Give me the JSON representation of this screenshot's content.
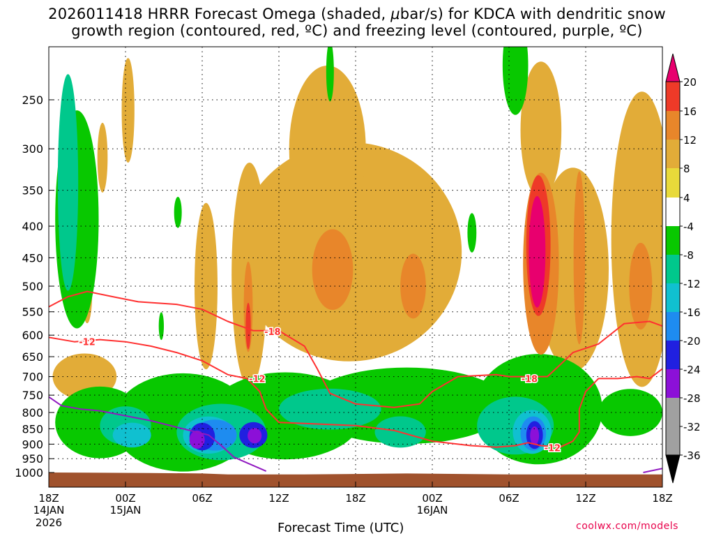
{
  "title": {
    "line1_a": "2026011418 HRRR Forecast Omega (shaded, ",
    "mu": "μ",
    "line1_b": "bar/s) for KDCA with dendritic snow",
    "line2": "growth region (contoured, red, ºC) and freezing level (contoured, purple, ºC)"
  },
  "footer": {
    "xlabel": "Forecast Time (UTC)",
    "credit": "coolwx.com/models"
  },
  "chart_data": {
    "type": "heatmap",
    "title": "2026011418 HRRR Forecast Omega (shaded, μbar/s) for KDCA with dendritic snow growth region (contoured, red, ºC) and freezing level (contoured, purple, ºC)",
    "xlabel": "Forecast Time (UTC)",
    "ylabel": "",
    "x_range_hours": [
      0,
      48
    ],
    "y_range_hPa": [
      1000,
      200
    ],
    "y_ticks": [
      250,
      300,
      350,
      400,
      450,
      500,
      550,
      600,
      650,
      700,
      750,
      800,
      850,
      900,
      950,
      1000
    ],
    "x_ticks": [
      {
        "h": 0,
        "label": "18Z",
        "sub1": "14JAN",
        "sub2": "2026"
      },
      {
        "h": 6,
        "label": "00Z",
        "sub1": "15JAN",
        "sub2": ""
      },
      {
        "h": 12,
        "label": "06Z",
        "sub1": "",
        "sub2": ""
      },
      {
        "h": 18,
        "label": "12Z",
        "sub1": "",
        "sub2": ""
      },
      {
        "h": 24,
        "label": "18Z",
        "sub1": "",
        "sub2": ""
      },
      {
        "h": 30,
        "label": "00Z",
        "sub1": "16JAN",
        "sub2": ""
      },
      {
        "h": 36,
        "label": "06Z",
        "sub1": "",
        "sub2": ""
      },
      {
        "h": 42,
        "label": "12Z",
        "sub1": "",
        "sub2": ""
      },
      {
        "h": 48,
        "label": "18Z",
        "sub1": "",
        "sub2": ""
      }
    ],
    "colorbar": {
      "levels": [
        20,
        16,
        12,
        8,
        4,
        -4,
        -8,
        -12,
        -16,
        -20,
        -24,
        -28,
        -32,
        -36
      ],
      "colors": [
        "#e8006e",
        "#ee3a28",
        "#e8862a",
        "#e2ac38",
        "#e8da3a",
        "#ffffff",
        "#08c800",
        "#00c88c",
        "#10c0d0",
        "#1e8cf0",
        "#2020e0",
        "#8c10d8",
        "#a0a0a0",
        "#000000"
      ]
    },
    "omega_regions": [
      {
        "value": 6,
        "x": 2.8,
        "p": 700,
        "rx": 2.5,
        "rp": 60
      },
      {
        "value": 6,
        "x": 3.0,
        "p": 510,
        "rx": 0.4,
        "rp": 60
      },
      {
        "value": 6,
        "x": 6.2,
        "p": 260,
        "rx": 0.5,
        "rp": 50
      },
      {
        "value": 6,
        "x": 4.2,
        "p": 310,
        "rx": 0.4,
        "rp": 40
      },
      {
        "value": 6,
        "x": 12.3,
        "p": 500,
        "rx": 0.9,
        "rp": 150
      },
      {
        "value": 6,
        "x": 15.7,
        "p": 480,
        "rx": 1.4,
        "rp": 190
      },
      {
        "value": 6,
        "x": 23.5,
        "p": 440,
        "rx": 8.8,
        "rp": 170
      },
      {
        "value": 6,
        "x": 21.8,
        "p": 300,
        "rx": 3.0,
        "rp": 90
      },
      {
        "value": 6,
        "x": 41.0,
        "p": 470,
        "rx": 2.8,
        "rp": 170
      },
      {
        "value": 6,
        "x": 46.4,
        "p": 420,
        "rx": 2.4,
        "rp": 210
      },
      {
        "value": 6,
        "x": 38.5,
        "p": 280,
        "rx": 1.6,
        "rp": 70
      },
      {
        "value": 10,
        "x": 15.6,
        "p": 540,
        "rx": 0.35,
        "rp": 90
      },
      {
        "value": 10,
        "x": 22.2,
        "p": 470,
        "rx": 1.6,
        "rp": 70
      },
      {
        "value": 10,
        "x": 28.5,
        "p": 500,
        "rx": 1.0,
        "rp": 60
      },
      {
        "value": 10,
        "x": 38.5,
        "p": 460,
        "rx": 1.4,
        "rp": 150
      },
      {
        "value": 10,
        "x": 41.5,
        "p": 450,
        "rx": 0.45,
        "rp": 140
      },
      {
        "value": 10,
        "x": 46.3,
        "p": 500,
        "rx": 0.9,
        "rp": 80
      },
      {
        "value": 14,
        "x": 38.3,
        "p": 430,
        "rx": 0.95,
        "rp": 110
      },
      {
        "value": 14,
        "x": 15.6,
        "p": 580,
        "rx": 0.2,
        "rp": 50
      },
      {
        "value": 18,
        "x": 38.2,
        "p": 440,
        "rx": 0.65,
        "rp": 90
      },
      {
        "value": 22,
        "x": 38.2,
        "p": 450,
        "rx": 0.5,
        "rp": 80
      },
      {
        "value": -6,
        "x": 2.2,
        "p": 390,
        "rx": 1.7,
        "rp": 150
      },
      {
        "value": -6,
        "x": 4.0,
        "p": 830,
        "rx": 3.5,
        "rp": 110
      },
      {
        "value": -6,
        "x": 10.5,
        "p": 830,
        "rx": 5.5,
        "rp": 150
      },
      {
        "value": -6,
        "x": 18.5,
        "p": 810,
        "rx": 6.0,
        "rp": 130
      },
      {
        "value": -6,
        "x": 28.0,
        "p": 780,
        "rx": 8.0,
        "rp": 110
      },
      {
        "value": -6,
        "x": 38.3,
        "p": 790,
        "rx": 5.0,
        "rp": 160
      },
      {
        "value": -6,
        "x": 45.5,
        "p": 800,
        "rx": 2.5,
        "rp": 70
      },
      {
        "value": -6,
        "x": 36.5,
        "p": 220,
        "rx": 1.0,
        "rp": 40
      },
      {
        "value": -6,
        "x": 22.0,
        "p": 225,
        "rx": 0.3,
        "rp": 25
      },
      {
        "value": -6,
        "x": 10.1,
        "p": 380,
        "rx": 0.3,
        "rp": 22
      },
      {
        "value": -6,
        "x": 33.1,
        "p": 410,
        "rx": 0.35,
        "rp": 30
      },
      {
        "value": -6,
        "x": 8.8,
        "p": 580,
        "rx": 0.2,
        "rp": 30
      },
      {
        "value": -10,
        "x": 1.5,
        "p": 340,
        "rx": 0.8,
        "rp": 130
      },
      {
        "value": -10,
        "x": 6.0,
        "p": 840,
        "rx": 2.0,
        "rp": 60
      },
      {
        "value": -10,
        "x": 13.5,
        "p": 860,
        "rx": 3.5,
        "rp": 90
      },
      {
        "value": -10,
        "x": 22.0,
        "p": 790,
        "rx": 4.0,
        "rp": 60
      },
      {
        "value": -10,
        "x": 36.5,
        "p": 840,
        "rx": 3.0,
        "rp": 90
      },
      {
        "value": -10,
        "x": 27.5,
        "p": 860,
        "rx": 2.0,
        "rp": 50
      },
      {
        "value": -14,
        "x": 12.5,
        "p": 870,
        "rx": 2.0,
        "rp": 60
      },
      {
        "value": -14,
        "x": 37.8,
        "p": 860,
        "rx": 1.5,
        "rp": 70
      },
      {
        "value": -14,
        "x": 6.5,
        "p": 870,
        "rx": 1.5,
        "rp": 40
      },
      {
        "value": -18,
        "x": 13.0,
        "p": 870,
        "rx": 1.7,
        "rp": 50
      },
      {
        "value": -18,
        "x": 37.9,
        "p": 865,
        "rx": 1.0,
        "rp": 55
      },
      {
        "value": -22,
        "x": 12.0,
        "p": 875,
        "rx": 1.0,
        "rp": 45
      },
      {
        "value": -22,
        "x": 16.0,
        "p": 870,
        "rx": 1.1,
        "rp": 42
      },
      {
        "value": -22,
        "x": 38.0,
        "p": 870,
        "rx": 0.65,
        "rp": 45
      },
      {
        "value": -26,
        "x": 11.6,
        "p": 885,
        "rx": 0.6,
        "rp": 30
      },
      {
        "value": -26,
        "x": 16.1,
        "p": 872,
        "rx": 0.55,
        "rp": 25
      },
      {
        "value": -26,
        "x": 38.0,
        "p": 872,
        "rx": 0.35,
        "rp": 30
      }
    ],
    "contours": [
      {
        "name": "-12C isotherm (upper)",
        "color": "#ff3030",
        "points": [
          [
            0,
            540
          ],
          [
            1.5,
            520
          ],
          [
            3.0,
            510
          ],
          [
            5.0,
            520
          ],
          [
            7.0,
            530
          ],
          [
            10.0,
            535
          ],
          [
            12.0,
            545
          ],
          [
            14.0,
            570
          ],
          [
            16.0,
            590
          ],
          [
            18.0,
            590
          ],
          [
            20.0,
            625
          ],
          [
            21.0,
            680
          ],
          [
            22.0,
            745
          ],
          [
            24.0,
            775
          ],
          [
            27.0,
            785
          ],
          [
            29.0,
            775
          ],
          [
            30.0,
            740
          ],
          [
            32.0,
            700
          ],
          [
            35.0,
            695
          ],
          [
            36.0,
            700
          ],
          [
            37.5,
            700
          ],
          [
            39.0,
            700
          ],
          [
            40.0,
            670
          ],
          [
            41.0,
            640
          ],
          [
            43.0,
            620
          ],
          [
            45.0,
            575
          ],
          [
            47.0,
            570
          ],
          [
            48.0,
            580
          ]
        ]
      },
      {
        "name": "-12C isotherm (lower)",
        "color": "#ff3030",
        "points": [
          [
            0,
            605
          ],
          [
            2.0,
            615
          ],
          [
            4.0,
            610
          ],
          [
            6.0,
            615
          ],
          [
            8.0,
            625
          ],
          [
            10.0,
            640
          ],
          [
            12.0,
            660
          ],
          [
            14.0,
            695
          ],
          [
            15.5,
            705
          ],
          [
            16.5,
            740
          ],
          [
            17.0,
            790
          ],
          [
            18.0,
            830
          ],
          [
            21.0,
            835
          ],
          [
            24.0,
            840
          ],
          [
            27.0,
            855
          ],
          [
            30.0,
            890
          ],
          [
            33.0,
            905
          ],
          [
            35.0,
            910
          ],
          [
            36.5,
            905
          ],
          [
            37.5,
            895
          ],
          [
            38.5,
            905
          ],
          [
            40.0,
            910
          ],
          [
            41.0,
            890
          ],
          [
            41.5,
            860
          ],
          [
            41.5,
            790
          ],
          [
            42.0,
            740
          ],
          [
            43.0,
            705
          ],
          [
            44.5,
            705
          ],
          [
            46.0,
            700
          ],
          [
            47.0,
            705
          ],
          [
            48.0,
            680
          ]
        ]
      },
      {
        "name": "freezing level",
        "color": "#9018c0",
        "points": [
          [
            0,
            755
          ],
          [
            1.0,
            780
          ],
          [
            2.5,
            790
          ],
          [
            4.0,
            795
          ],
          [
            6.0,
            810
          ],
          [
            8.0,
            825
          ],
          [
            10.5,
            850
          ],
          [
            12.5,
            870
          ],
          [
            13.5,
            905
          ],
          [
            14.5,
            945
          ],
          [
            17.0,
            995
          ]
        ]
      },
      {
        "name": "freezing level (right)",
        "color": "#9018c0",
        "points": [
          [
            46.5,
            1000
          ],
          [
            48.0,
            985
          ]
        ]
      }
    ],
    "contour_labels": [
      {
        "text": "-12",
        "x": 3.0,
        "p": 615
      },
      {
        "text": "-18",
        "x": 17.5,
        "p": 592
      },
      {
        "text": "-12",
        "x": 16.3,
        "p": 705
      },
      {
        "text": "-18",
        "x": 37.6,
        "p": 705
      },
      {
        "text": "-12",
        "x": 39.4,
        "p": 912
      }
    ]
  }
}
